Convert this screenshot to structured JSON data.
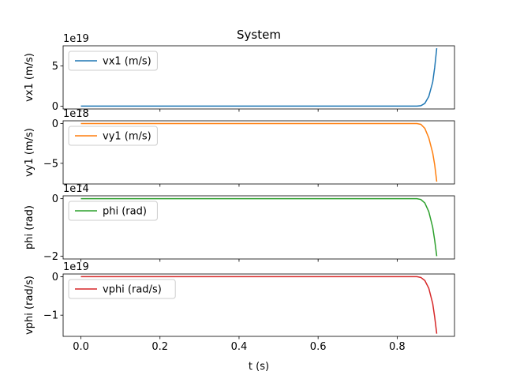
{
  "chart_data": {
    "type": "line",
    "title": "System",
    "xlabel": "t (s)",
    "xlim": [
      -0.045,
      0.945
    ],
    "xticks": [
      0.0,
      0.2,
      0.4,
      0.6,
      0.8
    ],
    "xtick_labels": [
      "0.0",
      "0.2",
      "0.4",
      "0.6",
      "0.8"
    ],
    "grid": false,
    "legend_position": "upper-left",
    "subplots": [
      {
        "ylabel": "vx1 (m/s)",
        "offset_text": "1e19",
        "ylim": [
          -0.35,
          7.5
        ],
        "yticks": [
          0,
          5
        ],
        "ytick_labels": [
          "0",
          "5"
        ],
        "series": [
          {
            "name": "vx1 (m/s)",
            "color": "#1f77b4",
            "x": [
              0.0,
              0.2,
              0.4,
              0.6,
              0.8,
              0.85,
              0.86,
              0.87,
              0.88,
              0.89,
              0.895,
              0.9
            ],
            "y": [
              0,
              0,
              0,
              0,
              0,
              0,
              0.05,
              0.35,
              1.2,
              3.0,
              4.8,
              7.2
            ]
          }
        ]
      },
      {
        "ylabel": "vy1 (m/s)",
        "offset_text": "1e18",
        "ylim": [
          -7.6,
          0.35
        ],
        "yticks": [
          0,
          -5
        ],
        "ytick_labels": [
          "0",
          "−5"
        ],
        "series": [
          {
            "name": "vy1 (m/s)",
            "color": "#ff7f0e",
            "x": [
              0.0,
              0.2,
              0.4,
              0.6,
              0.8,
              0.85,
              0.86,
              0.87,
              0.88,
              0.89,
              0.895,
              0.9
            ],
            "y": [
              0,
              0,
              0,
              0,
              0,
              0,
              -0.1,
              -0.6,
              -1.8,
              -3.7,
              -5.2,
              -7.3
            ]
          }
        ]
      },
      {
        "ylabel": "phi (rad)",
        "offset_text": "1e14",
        "ylim": [
          -2.1,
          0.1
        ],
        "yticks": [
          0,
          -2
        ],
        "ytick_labels": [
          "0",
          "−2"
        ],
        "series": [
          {
            "name": "phi (rad)",
            "color": "#2ca02c",
            "x": [
              0.0,
              0.2,
              0.4,
              0.6,
              0.8,
              0.85,
              0.86,
              0.87,
              0.88,
              0.89,
              0.895,
              0.9
            ],
            "y": [
              0,
              0,
              0,
              0,
              0,
              0,
              -0.03,
              -0.15,
              -0.45,
              -1.0,
              -1.45,
              -2.0
            ]
          }
        ]
      },
      {
        "ylabel": "vphi (rad/s)",
        "offset_text": "1e19",
        "ylim": [
          -1.55,
          0.07
        ],
        "yticks": [
          0,
          -1
        ],
        "ytick_labels": [
          "0",
          "−1"
        ],
        "series": [
          {
            "name": "vphi (rad/s)",
            "color": "#d62728",
            "x": [
              0.0,
              0.2,
              0.4,
              0.6,
              0.8,
              0.85,
              0.86,
              0.87,
              0.88,
              0.89,
              0.895,
              0.9
            ],
            "y": [
              0,
              0,
              0,
              0,
              0,
              0,
              -0.02,
              -0.1,
              -0.3,
              -0.7,
              -1.05,
              -1.48
            ]
          }
        ]
      }
    ]
  }
}
